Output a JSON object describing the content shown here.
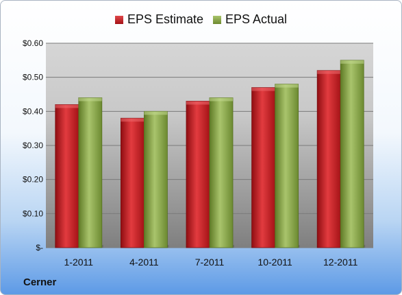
{
  "legend": {
    "estimate_label": "EPS Estimate",
    "actual_label": "EPS Actual"
  },
  "company": "Cerner",
  "colors": {
    "estimate": "#c8191d",
    "actual": "#8eaa4e"
  },
  "chart_data": {
    "type": "bar",
    "title": "",
    "xlabel": "",
    "ylabel": "",
    "categories": [
      "1-2011",
      "4-2011",
      "7-2011",
      "10-2011",
      "12-2011"
    ],
    "series": [
      {
        "name": "EPS Estimate",
        "values": [
          0.42,
          0.38,
          0.43,
          0.47,
          0.52
        ]
      },
      {
        "name": "EPS Actual",
        "values": [
          0.44,
          0.4,
          0.44,
          0.48,
          0.55
        ]
      }
    ],
    "ylim": [
      0,
      0.6
    ],
    "yticks": [
      0,
      0.1,
      0.2,
      0.3,
      0.4,
      0.5,
      0.6
    ],
    "ytick_labels": [
      "$-",
      "$0.10",
      "$0.20",
      "$0.30",
      "$0.40",
      "$0.50",
      "$0.60"
    ],
    "grid": true,
    "legend_position": "top"
  }
}
